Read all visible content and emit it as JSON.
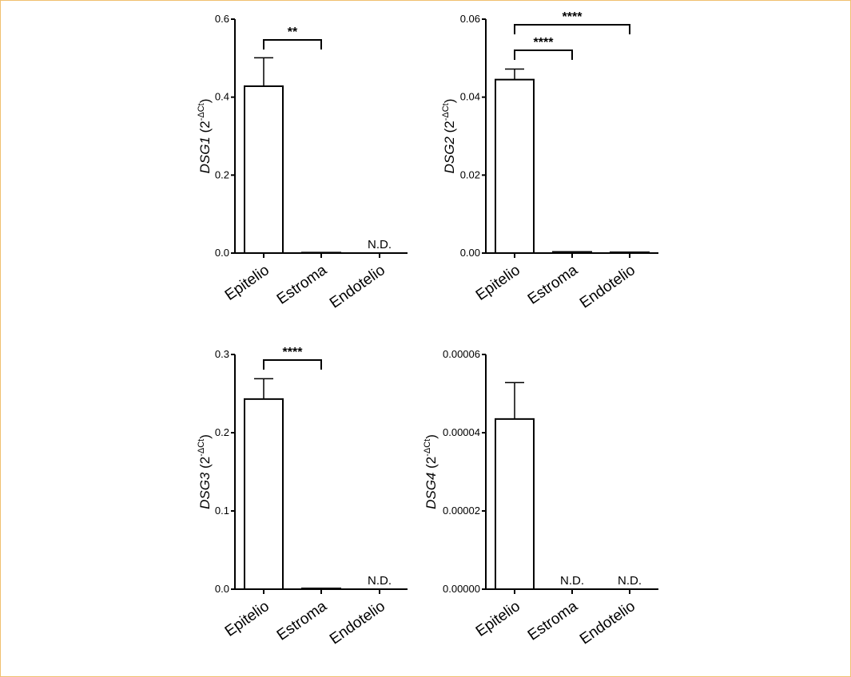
{
  "chart_data": [
    {
      "type": "bar",
      "gene": "DSG1",
      "ylabel_suffix": "(2",
      "ylabel_exp": "-ΔCt",
      "ylabel_close": ")",
      "categories": [
        "Epitelio",
        "Estroma",
        "Endotelio"
      ],
      "values": [
        0.428,
        0.0,
        null
      ],
      "errors": [
        0.073,
        0.0,
        null
      ],
      "not_detected": [
        "",
        "",
        "N.D."
      ],
      "ylim": [
        0,
        0.6
      ],
      "yticks": [
        0.0,
        0.2,
        0.4,
        0.6
      ],
      "ytick_labels": [
        "0.0",
        "0.2",
        "0.4",
        "0.6"
      ],
      "significance": [
        {
          "from": 0,
          "to": 1,
          "label": "**"
        }
      ]
    },
    {
      "type": "bar",
      "gene": "DSG2",
      "ylabel_suffix": "(2",
      "ylabel_exp": "-ΔCt",
      "ylabel_close": ")",
      "categories": [
        "Epitelio",
        "Estroma",
        "Endotelio"
      ],
      "values": [
        0.0445,
        0.0003,
        0.0002
      ],
      "errors": [
        0.0027,
        0.0,
        0.0
      ],
      "not_detected": [
        "",
        "",
        ""
      ],
      "ylim": [
        0,
        0.06
      ],
      "yticks": [
        0.0,
        0.02,
        0.04,
        0.06
      ],
      "ytick_labels": [
        "0.00",
        "0.02",
        "0.04",
        "0.06"
      ],
      "significance": [
        {
          "from": 0,
          "to": 1,
          "label": "****"
        },
        {
          "from": 0,
          "to": 2,
          "label": "****"
        }
      ]
    },
    {
      "type": "bar",
      "gene": "DSG3",
      "ylabel_suffix": "(2",
      "ylabel_exp": "-ΔCt",
      "ylabel_close": ")",
      "categories": [
        "Epitelio",
        "Estroma",
        "Endotelio"
      ],
      "values": [
        0.243,
        0.001,
        null
      ],
      "errors": [
        0.026,
        0.0,
        null
      ],
      "not_detected": [
        "",
        "",
        "N.D."
      ],
      "ylim": [
        0,
        0.3
      ],
      "yticks": [
        0.0,
        0.1,
        0.2,
        0.3
      ],
      "ytick_labels": [
        "0.0",
        "0.1",
        "0.2",
        "0.3"
      ],
      "significance": [
        {
          "from": 0,
          "to": 1,
          "label": "****"
        }
      ]
    },
    {
      "type": "bar",
      "gene": "DSG4",
      "ylabel_suffix": "(2",
      "ylabel_exp": "-ΔCt",
      "ylabel_close": ")",
      "categories": [
        "Epitelio",
        "Estroma",
        "Endotelio"
      ],
      "values": [
        4.35e-05,
        null,
        null
      ],
      "errors": [
        9.3e-06,
        null,
        null
      ],
      "not_detected": [
        "",
        "N.D.",
        "N.D."
      ],
      "ylim": [
        0,
        6e-05
      ],
      "yticks": [
        0.0,
        2e-05,
        4e-05,
        6e-05
      ],
      "ytick_labels": [
        "0.00000",
        "0.00002",
        "0.00004",
        "0.00006"
      ],
      "significance": []
    }
  ]
}
